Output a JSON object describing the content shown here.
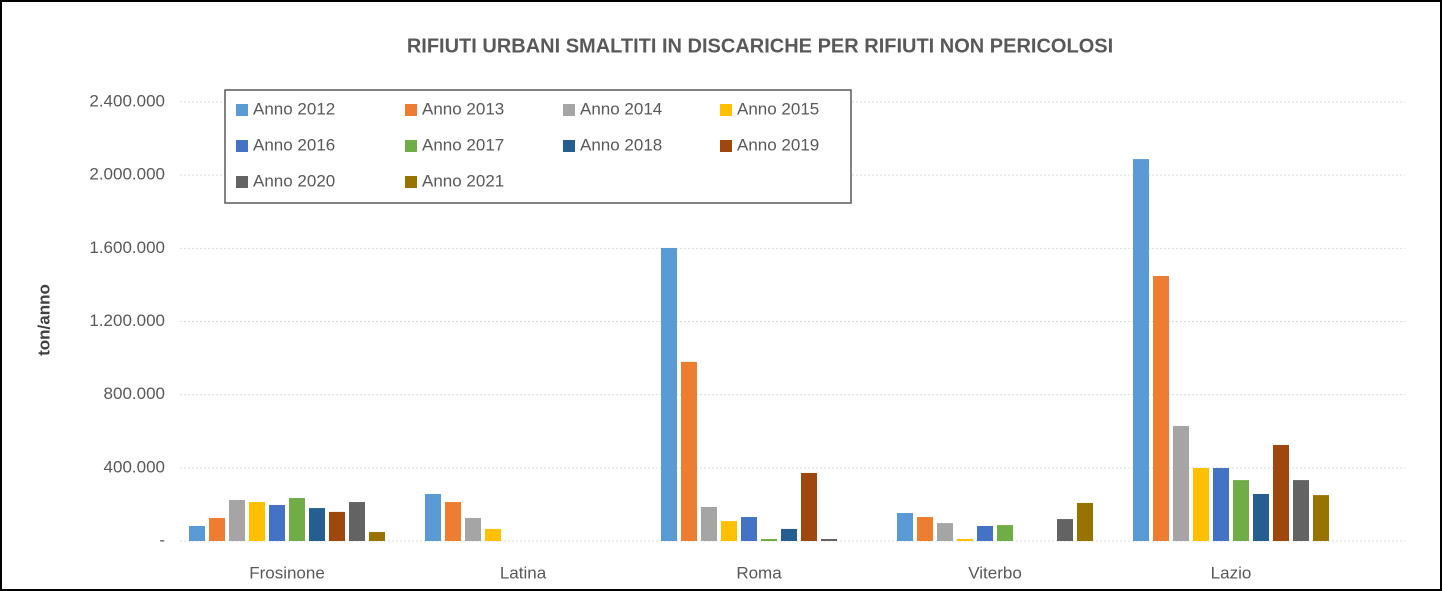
{
  "chart_data": {
    "type": "bar",
    "title": "RIFIUTI URBANI SMALTITI IN DISCARICHE PER RIFIUTI NON PERICOLOSI",
    "y_label": "ton/anno",
    "categories": [
      "Frosinone",
      "Latina",
      "Roma",
      "Viterbo",
      "Lazio"
    ],
    "series": [
      {
        "name": "Anno 2012",
        "color": "#5b9bd5",
        "values": [
          82000,
          257000,
          1602000,
          153000,
          2088000
        ]
      },
      {
        "name": "Anno 2013",
        "color": "#ed7d31",
        "values": [
          126000,
          213000,
          979000,
          131000,
          1449000
        ]
      },
      {
        "name": "Anno 2014",
        "color": "#a5a5a5",
        "values": [
          224000,
          126000,
          186000,
          98000,
          629000
        ]
      },
      {
        "name": "Anno 2015",
        "color": "#ffc000",
        "values": [
          213000,
          66000,
          109000,
          11000,
          399000
        ]
      },
      {
        "name": "Anno 2016",
        "color": "#4472c4",
        "values": [
          197000,
          0,
          131000,
          82000,
          399000
        ]
      },
      {
        "name": "Anno 2017",
        "color": "#70ad47",
        "values": [
          235000,
          0,
          11000,
          87000,
          333000
        ]
      },
      {
        "name": "Anno 2018",
        "color": "#255e91",
        "values": [
          180000,
          0,
          66000,
          0,
          257000
        ]
      },
      {
        "name": "Anno 2019",
        "color": "#9e480e",
        "values": [
          159000,
          0,
          372000,
          0,
          525000
        ]
      },
      {
        "name": "Anno 2020",
        "color": "#636363",
        "values": [
          213000,
          0,
          11000,
          120000,
          333000
        ]
      },
      {
        "name": "Anno 2021",
        "color": "#997300",
        "values": [
          49000,
          0,
          0,
          208000,
          251000
        ]
      }
    ],
    "ylim": [
      0,
      2400000
    ],
    "yticks": [
      {
        "value": 0,
        "label": "-"
      },
      {
        "value": 400000,
        "label": "400.000"
      },
      {
        "value": 800000,
        "label": "800.000"
      },
      {
        "value": 1200000,
        "label": "1.200.000"
      },
      {
        "value": 1600000,
        "label": "1.600.000"
      },
      {
        "value": 2000000,
        "label": "2.000.000"
      },
      {
        "value": 2400000,
        "label": "2.400.000"
      }
    ],
    "grid": true,
    "legend": "upper left"
  }
}
